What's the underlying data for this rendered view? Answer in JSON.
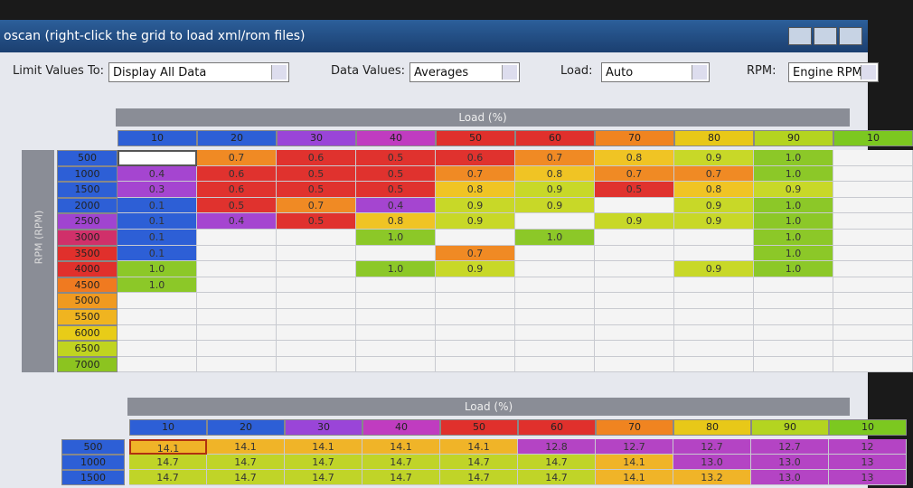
{
  "window": {
    "title": "oscan (right-click the grid to load xml/rom files)"
  },
  "controls": [
    {
      "label": "Limit Values To:",
      "value": "Display All Data"
    },
    {
      "label": "Data Values:",
      "value": "Averages"
    },
    {
      "label": "Load:",
      "value": "Auto"
    },
    {
      "label": "RPM:",
      "value": "Engine RPM"
    }
  ],
  "tables": [
    {
      "title": "Load (%)",
      "row_axis": "RPM (RPM)",
      "columns": [
        "10",
        "20",
        "30",
        "40",
        "50",
        "60",
        "70",
        "80",
        "90",
        "10"
      ],
      "rows": [
        "500",
        "1000",
        "1500",
        "2000",
        "2500",
        "3000",
        "3500",
        "4000",
        "4500",
        "5000",
        "5500",
        "6000",
        "6500",
        "7000"
      ],
      "cells": [
        [
          null,
          "0.7",
          "0.6",
          "0.5",
          "0.6",
          "0.7",
          "0.8",
          "0.9",
          "1.0",
          null
        ],
        [
          "0.4",
          "0.6",
          "0.5",
          "0.5",
          "0.7",
          "0.8",
          "0.7",
          "0.7",
          "1.0",
          null
        ],
        [
          "0.3",
          "0.6",
          "0.5",
          "0.5",
          "0.8",
          "0.9",
          "0.5",
          "0.8",
          "0.9",
          null
        ],
        [
          "0.1",
          "0.5",
          "0.7",
          "0.4",
          "0.9",
          "0.9",
          null,
          "0.9",
          "1.0",
          null
        ],
        [
          "0.1",
          "0.4",
          "0.5",
          "0.8",
          "0.9",
          null,
          "0.9",
          "0.9",
          "1.0",
          null
        ],
        [
          "0.1",
          null,
          null,
          "1.0",
          null,
          "1.0",
          null,
          null,
          "1.0",
          null
        ],
        [
          "0.1",
          null,
          null,
          null,
          "0.7",
          null,
          null,
          null,
          "1.0",
          null
        ],
        [
          "1.0",
          null,
          null,
          "1.0",
          "0.9",
          null,
          null,
          "0.9",
          "1.0",
          null
        ],
        [
          "1.0",
          null,
          null,
          null,
          null,
          null,
          null,
          null,
          null,
          null
        ],
        [
          null,
          null,
          null,
          null,
          null,
          null,
          null,
          null,
          null,
          null
        ],
        [
          null,
          null,
          null,
          null,
          null,
          null,
          null,
          null,
          null,
          null
        ],
        [
          null,
          null,
          null,
          null,
          null,
          null,
          null,
          null,
          null,
          null
        ],
        [
          null,
          null,
          null,
          null,
          null,
          null,
          null,
          null,
          null,
          null
        ],
        [
          null,
          null,
          null,
          null,
          null,
          null,
          null,
          null,
          null,
          null
        ]
      ]
    },
    {
      "title": "Load (%)",
      "columns": [
        "10",
        "20",
        "30",
        "40",
        "50",
        "60",
        "70",
        "80",
        "90",
        "10"
      ],
      "rows": [
        "500",
        "1000",
        "1500"
      ],
      "cells": [
        [
          "14.1",
          "14.1",
          "14.1",
          "14.1",
          "14.1",
          "12.8",
          "12.7",
          "12.7",
          "12.7",
          "12"
        ],
        [
          "14.7",
          "14.7",
          "14.7",
          "14.7",
          "14.7",
          "14.7",
          "14.1",
          "13.0",
          "13.0",
          "13"
        ],
        [
          "14.7",
          "14.7",
          "14.7",
          "14.7",
          "14.7",
          "14.7",
          "14.1",
          "13.2",
          "13.0",
          "13"
        ]
      ]
    }
  ]
}
